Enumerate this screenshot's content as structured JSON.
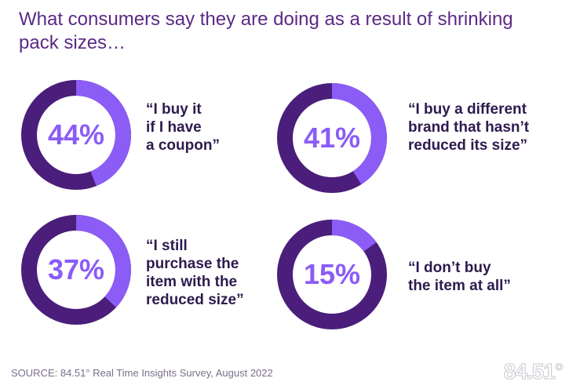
{
  "title": "What consumers say they are doing as a result of shrinking pack sizes…",
  "colors": {
    "track": "#4a1e7a",
    "highlight": "#8b5cf6",
    "title": "#5b2a86",
    "quote": "#2d1b4e"
  },
  "chart_data": {
    "type": "pie",
    "title": "What consumers say they are doing as a result of shrinking pack sizes…",
    "items": [
      {
        "value": 44,
        "label": "44%",
        "quote_lines": [
          "“I buy it",
          "if I have",
          "a coupon”"
        ]
      },
      {
        "value": 41,
        "label": "41%",
        "quote_lines": [
          "“I buy a different",
          "brand that hasn’t",
          "reduced its size”"
        ]
      },
      {
        "value": 37,
        "label": "37%",
        "quote_lines": [
          "“I still",
          "purchase the",
          "item with the",
          "reduced size”"
        ]
      },
      {
        "value": 15,
        "label": "15%",
        "quote_lines": [
          "“I don’t buy",
          "the item at all”"
        ]
      }
    ]
  },
  "source": "SOURCE: 84.51° Real Time Insights Survey, August 2022",
  "logo": "84.51°"
}
